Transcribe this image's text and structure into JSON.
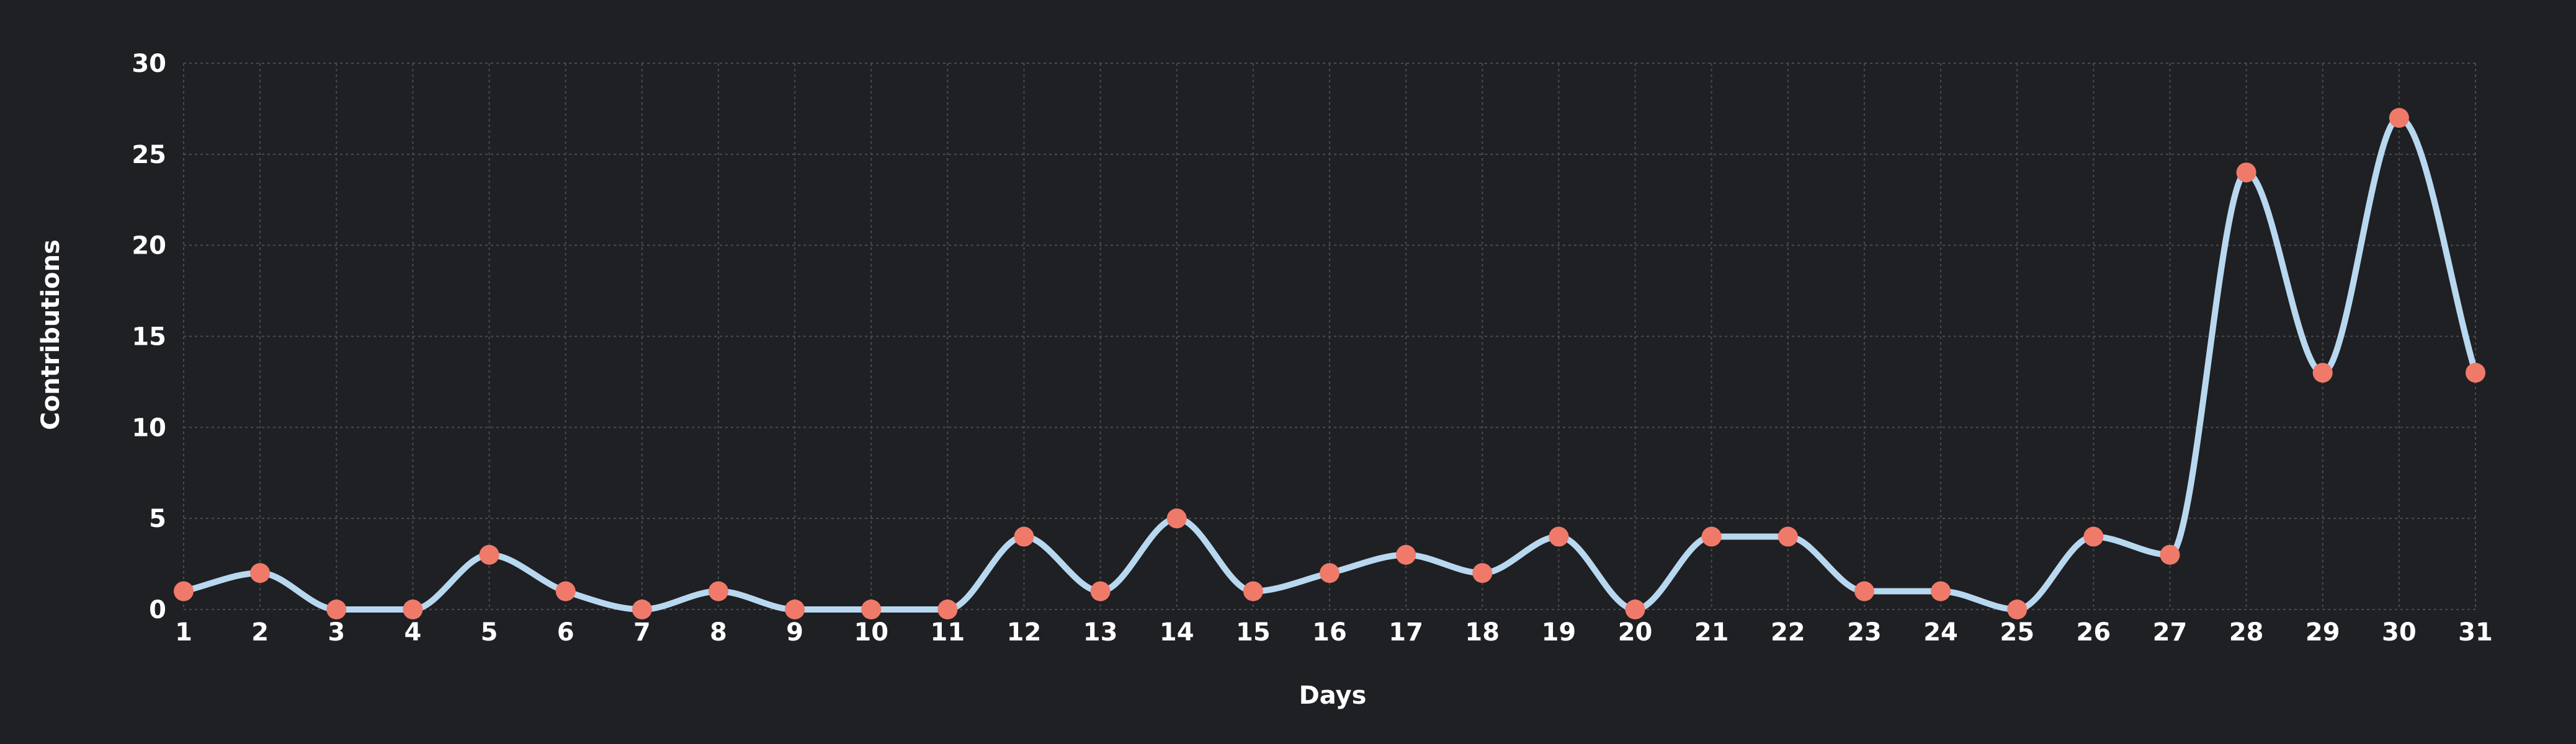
{
  "chart_data": {
    "type": "line",
    "title": "",
    "xlabel": "Days",
    "ylabel": "Contributions",
    "x": [
      1,
      2,
      3,
      4,
      5,
      6,
      7,
      8,
      9,
      10,
      11,
      12,
      13,
      14,
      15,
      16,
      17,
      18,
      19,
      20,
      21,
      22,
      23,
      24,
      25,
      26,
      27,
      28,
      29,
      30,
      31
    ],
    "x_tick_labels": [
      "1",
      "2",
      "3",
      "4",
      "5",
      "6",
      "7",
      "8",
      "9",
      "10",
      "11",
      "12",
      "13",
      "14",
      "15",
      "16",
      "17",
      "18",
      "19",
      "20",
      "21",
      "22",
      "23",
      "24",
      "25",
      "26",
      "27",
      "28",
      "29",
      "30",
      "31"
    ],
    "y_tick_labels": [
      "0",
      "5",
      "10",
      "15",
      "20",
      "25",
      "30"
    ],
    "y_ticks": [
      0,
      5,
      10,
      15,
      20,
      25,
      30
    ],
    "ylim": [
      0,
      30
    ],
    "xlim": [
      1,
      31
    ],
    "series": [
      {
        "values": [
          1,
          2,
          0,
          0,
          3,
          1,
          0,
          1,
          0,
          0,
          0,
          4,
          1,
          5,
          1,
          2,
          3,
          2,
          4,
          0,
          4,
          4,
          1,
          1,
          0,
          4,
          3,
          24,
          13,
          27,
          13
        ]
      }
    ],
    "grid": true,
    "legend": "none",
    "line_color": "#b8d8f0",
    "point_color": "#f07a6a",
    "background_color": "#1f2024",
    "grid_color": "#4a4b50",
    "text_color": "#ffffff"
  }
}
